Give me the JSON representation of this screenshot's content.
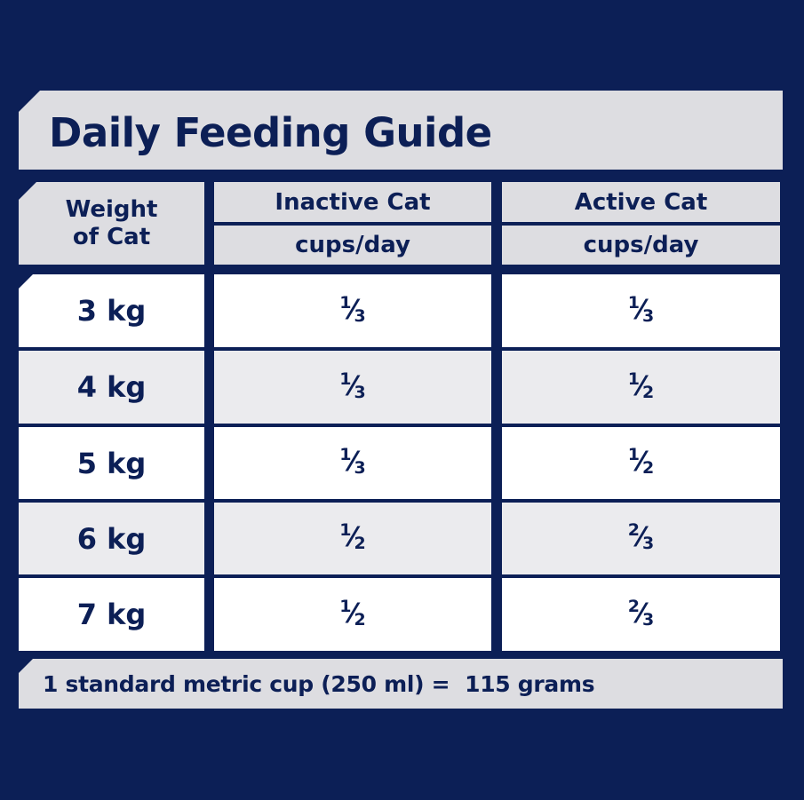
{
  "title": "Daily Feeding Guide",
  "header": {
    "weight_line1": "Weight",
    "weight_line2": "of Cat",
    "inactive": "Inactive Cat",
    "active": "Active Cat",
    "unit_inactive": "cups/day",
    "unit_active": "cups/day"
  },
  "rows": [
    {
      "weight": "3 kg",
      "inactive": {
        "n": "1",
        "d": "3"
      },
      "active": {
        "n": "1",
        "d": "3"
      }
    },
    {
      "weight": "4 kg",
      "inactive": {
        "n": "1",
        "d": "3"
      },
      "active": {
        "n": "1",
        "d": "2"
      }
    },
    {
      "weight": "5 kg",
      "inactive": {
        "n": "1",
        "d": "3"
      },
      "active": {
        "n": "1",
        "d": "2"
      }
    },
    {
      "weight": "6 kg",
      "inactive": {
        "n": "1",
        "d": "2"
      },
      "active": {
        "n": "2",
        "d": "3"
      }
    },
    {
      "weight": "7 kg",
      "inactive": {
        "n": "1",
        "d": "2"
      },
      "active": {
        "n": "2",
        "d": "3"
      }
    }
  ],
  "footer": "1 standard metric cup (250 ml) =  115 grams",
  "colors": {
    "background": "#0c1f56",
    "header_grey": "#dddde1",
    "row_grey": "#ebebee",
    "row_white": "#ffffff",
    "text": "#0c1f56"
  }
}
